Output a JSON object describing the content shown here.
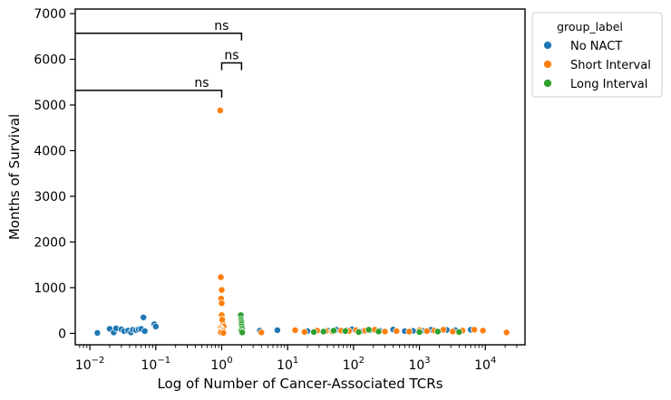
{
  "chart_data": {
    "type": "scatter",
    "title": "",
    "xlabel": "Log of Number of Cancer-Associated TCRs",
    "ylabel": "Months of Survival",
    "xscale": "log",
    "xlim": [
      0.006,
      40000
    ],
    "ylim": [
      -250,
      7100
    ],
    "xticks": [
      {
        "value": 0.01,
        "base": "10",
        "exp": "−2"
      },
      {
        "value": 0.1,
        "base": "10",
        "exp": "−1"
      },
      {
        "value": 1,
        "base": "10",
        "exp": "0"
      },
      {
        "value": 10,
        "base": "10",
        "exp": "1"
      },
      {
        "value": 100,
        "base": "10",
        "exp": "2"
      },
      {
        "value": 1000,
        "base": "10",
        "exp": "3"
      },
      {
        "value": 10000,
        "base": "10",
        "exp": "4"
      }
    ],
    "yticks": [
      0,
      1000,
      2000,
      3000,
      4000,
      5000,
      6000,
      7000
    ],
    "grid": false,
    "legend": {
      "title": "group_label",
      "placement": "upper-right-outside"
    },
    "series": [
      {
        "name": "No NACT",
        "color": "#1f77b4",
        "x": [
          0.013,
          0.02,
          0.023,
          0.025,
          0.03,
          0.033,
          0.038,
          0.042,
          0.045,
          0.05,
          0.055,
          0.06,
          0.065,
          0.068,
          0.095,
          0.1,
          3.8,
          7,
          20,
          40,
          55,
          80,
          95,
          140,
          180,
          250,
          400,
          600,
          800,
          1100,
          1500,
          2600,
          3500,
          6000
        ],
        "y": [
          10,
          100,
          20,
          110,
          90,
          50,
          60,
          20,
          80,
          70,
          90,
          100,
          350,
          50,
          200,
          150,
          60,
          70,
          50,
          65,
          80,
          70,
          90,
          50,
          70,
          60,
          85,
          50,
          55,
          60,
          80,
          75,
          70,
          80
        ]
      },
      {
        "name": "Short Interval",
        "color": "#ff7f0e",
        "x": [
          0.95,
          0.97,
          0.98,
          1.0,
          1.0,
          1.0,
          1.02,
          1.03,
          1.05,
          1.07,
          0.96,
          0.99,
          1.01,
          1.04,
          1.0,
          0.97,
          1.06,
          1.02,
          4,
          13,
          18,
          28,
          38,
          48,
          65,
          85,
          110,
          150,
          210,
          300,
          450,
          700,
          1000,
          1300,
          1700,
          2300,
          3200,
          4500,
          6800,
          9200,
          21000
        ],
        "y": [
          4880,
          1230,
          760,
          660,
          950,
          400,
          300,
          250,
          200,
          150,
          120,
          100,
          80,
          60,
          40,
          20,
          10,
          300,
          20,
          70,
          30,
          60,
          50,
          40,
          60,
          50,
          70,
          60,
          80,
          40,
          50,
          40,
          70,
          50,
          60,
          80,
          40,
          60,
          80,
          60,
          20
        ]
      },
      {
        "name": "Long Interval",
        "color": "#2ca02c",
        "x": [
          1.95,
          1.97,
          2.0,
          2.0,
          2.02,
          2.03,
          1.98,
          2.05,
          25,
          35,
          50,
          75,
          120,
          170,
          240,
          1000,
          1900,
          4000
        ],
        "y": [
          400,
          300,
          250,
          200,
          150,
          100,
          50,
          20,
          30,
          40,
          60,
          50,
          30,
          80,
          40,
          30,
          40,
          30
        ]
      }
    ],
    "annotations": [
      {
        "text": "ns",
        "x1": 0.006,
        "x2": 2,
        "y": 6570,
        "tick_end": "x2"
      },
      {
        "text": "ns",
        "x1": 1,
        "x2": 2,
        "y": 5920,
        "tick_end": "both"
      },
      {
        "text": "ns",
        "x1": 0.006,
        "x2": 1,
        "y": 5320,
        "tick_end": "x2"
      }
    ]
  }
}
